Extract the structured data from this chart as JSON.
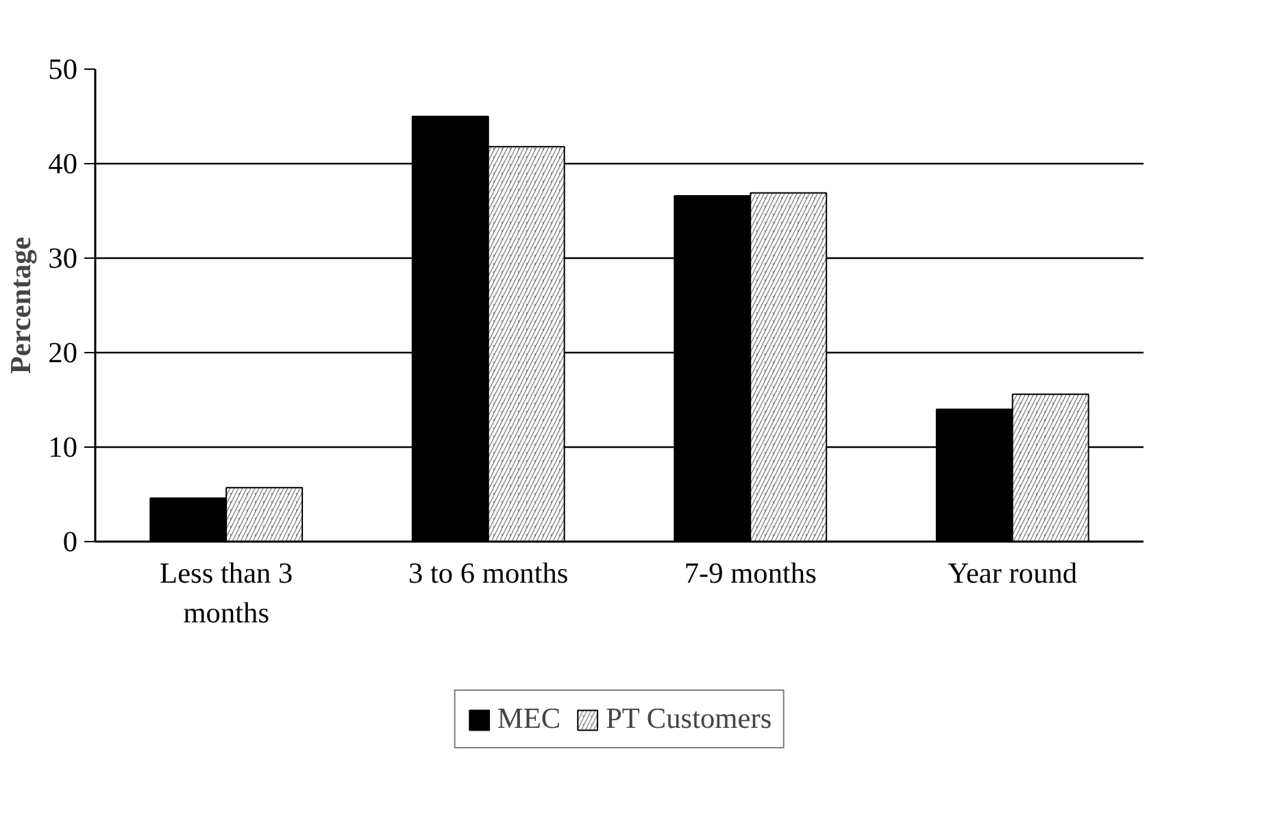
{
  "chart_data": {
    "type": "bar",
    "ylabel": "Percentage",
    "categories": [
      "Less than 3\nmonths",
      "3 to 6 months",
      "7-9 months",
      "Year round"
    ],
    "series": [
      {
        "name": "MEC",
        "color": "#000000",
        "values": [
          4.6,
          45,
          36.6,
          14.0
        ]
      },
      {
        "name": "PT Customers",
        "color": "#808080",
        "values": [
          5.7,
          41.8,
          36.9,
          15.6
        ]
      }
    ],
    "ylim": [
      0,
      50
    ],
    "yticks": [
      0,
      10,
      20,
      30,
      40,
      50
    ],
    "grid": "y",
    "legend": "bottom"
  }
}
